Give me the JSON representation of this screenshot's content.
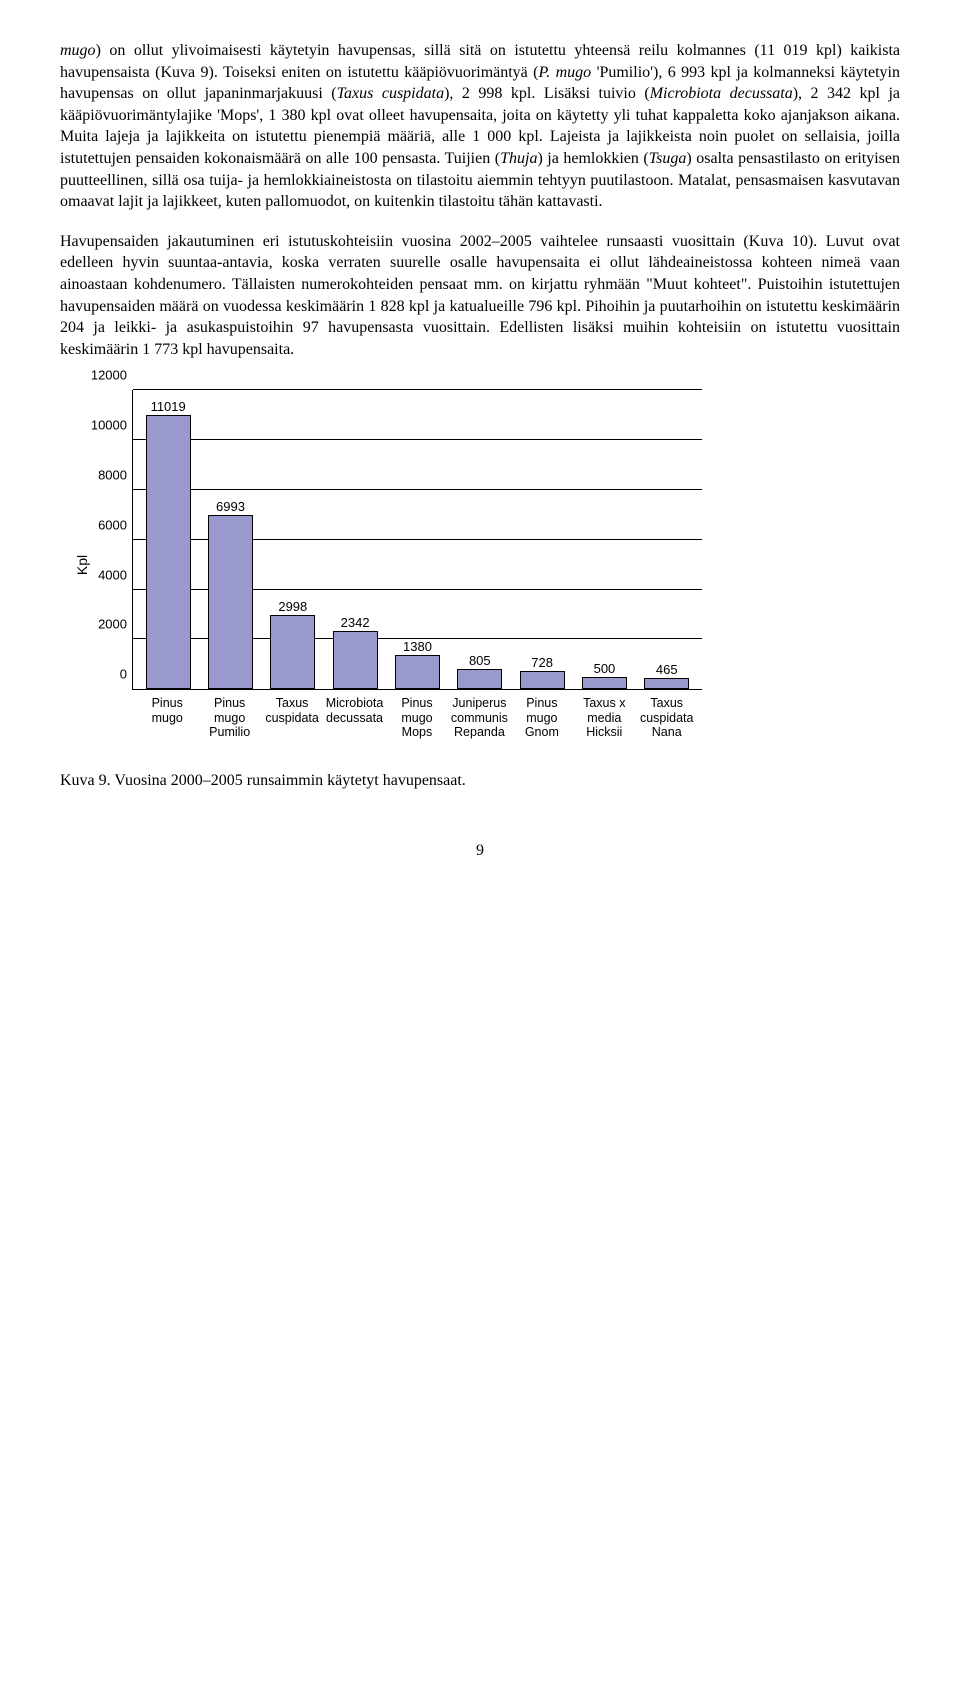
{
  "paragraphs": {
    "p1": "mugo) on ollut ylivoimaisesti käytetyin havupensas, sillä sitä on istutettu yhteensä reilu kolmannes (11 019 kpl) kaikista havupensaista (Kuva 9). Toiseksi eniten on istutettu kääpiövuorimäntyä (P. mugo 'Pumilio'), 6 993 kpl ja kolmanneksi käytetyin havupensas on ollut japaninmarjakuusi (Taxus cuspidata), 2 998 kpl. Lisäksi tuivio (Microbiota decussata), 2 342 kpl ja kääpiövuorimäntylajike 'Mops', 1 380 kpl ovat olleet havupensaita, joita on käytetty yli tuhat kappaletta koko ajanjakson aikana. Muita lajeja ja lajikkeita on istutettu pienempiä määriä, alle 1 000 kpl. Lajeista ja lajikkeista noin puolet on sellaisia, joilla istutettujen pensaiden kokonaismäärä on alle 100 pensasta. Tuijien (Thuja) ja hemlokkien (Tsuga) osalta pensastilasto on erityisen puutteellinen, sillä osa tuija- ja hemlokkiaineistosta on tilastoitu aiemmin tehtyyn puutilastoon. Matalat, pensasmaisen kasvutavan omaavat lajit ja lajikkeet, kuten pallomuodot, on kuitenkin tilastoitu tähän kattavasti.",
    "p2": "Havupensaiden jakautuminen eri istutuskohteisiin vuosina 2002–2005 vaihtelee runsaasti vuosittain (Kuva 10). Luvut ovat edelleen hyvin suuntaa-antavia, koska verraten suurelle osalle havupensaita ei ollut lähdeaineistossa kohteen nimeä vaan ainoastaan kohdenumero. Tällaisten numerokohteiden pensaat mm. on kirjattu ryhmään \"Muut kohteet\". Puistoihin istutettujen havupensaiden määrä on vuodessa keskimäärin 1 828 kpl ja katualueille 796 kpl. Pihoihin ja puutarhoihin on istutettu keskimäärin 204 ja leikki- ja asukaspuistoihin 97 havupensasta vuosittain. Edellisten lisäksi muihin kohteisiin on istutettu vuosittain keskimäärin 1 773 kpl havupensaita."
  },
  "chart": {
    "type": "bar",
    "ylabel": "Kpl",
    "ylim_max": 12000,
    "ytick_step": 2000,
    "yticks": [
      0,
      2000,
      4000,
      6000,
      8000,
      10000,
      12000
    ],
    "bar_fill": "#9999ce",
    "bar_border": "#000000",
    "grid_color": "#000000",
    "background": "#ffffff",
    "bars": [
      {
        "label_l1": "Pinus",
        "label_l2": "mugo",
        "label_l3": "",
        "value": 11019
      },
      {
        "label_l1": "Pinus",
        "label_l2": "mugo",
        "label_l3": "Pumilio",
        "value": 6993
      },
      {
        "label_l1": "Taxus",
        "label_l2": "cuspidata",
        "label_l3": "",
        "value": 2998
      },
      {
        "label_l1": "Microbiota",
        "label_l2": "decussata",
        "label_l3": "",
        "value": 2342
      },
      {
        "label_l1": "Pinus",
        "label_l2": "mugo",
        "label_l3": "Mops",
        "value": 1380
      },
      {
        "label_l1": "Juniperus",
        "label_l2": "communis",
        "label_l3": "Repanda",
        "value": 805
      },
      {
        "label_l1": "Pinus",
        "label_l2": "mugo",
        "label_l3": "Gnom",
        "value": 728
      },
      {
        "label_l1": "Taxus x",
        "label_l2": "media",
        "label_l3": "Hicksii",
        "value": 500
      },
      {
        "label_l1": "Taxus",
        "label_l2": "cuspidata",
        "label_l3": "Nana",
        "value": 465
      }
    ]
  },
  "caption": "Kuva 9. Vuosina 2000–2005 runsaimmin käytetyt havupensaat.",
  "page_number": "9"
}
